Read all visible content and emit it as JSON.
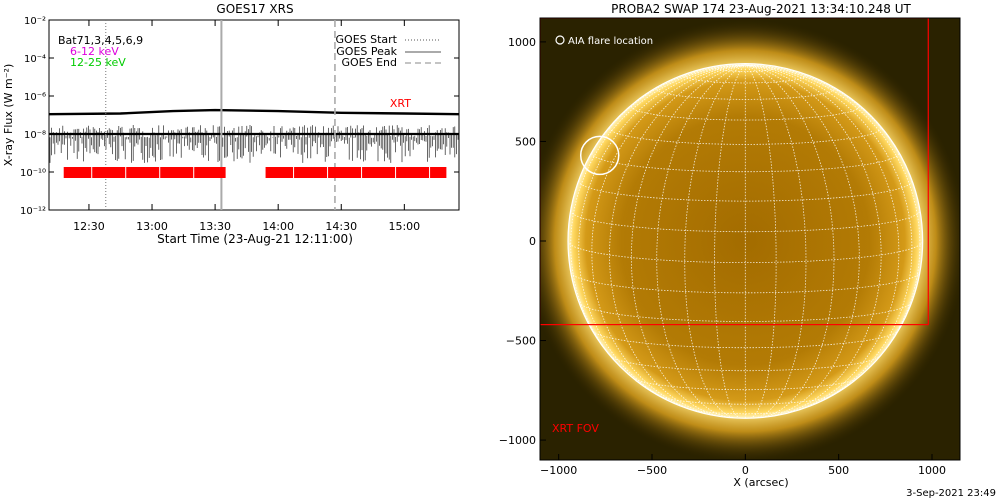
{
  "goes_panel": {
    "title": "GOES17 XRS",
    "ylabel": "X-ray Flux (W m⁻²)",
    "xlabel": "Start Time (23-Aug-21 12:11:00)",
    "ytick_labels": [
      "10⁻²",
      "10⁻⁴",
      "10⁻⁶",
      "10⁻⁸",
      "10⁻¹⁰",
      "10⁻¹²"
    ],
    "xtick_labels": [
      "12:30",
      "13:00",
      "13:30",
      "14:00",
      "14:30",
      "15:00"
    ],
    "text_lines": [
      {
        "text": "Bat71,3,4,5,6,9",
        "color": "#000000"
      },
      {
        "text": "6-12 keV",
        "color": "#dd00dd"
      },
      {
        "text": "12-25 keV",
        "color": "#00cc00"
      }
    ],
    "legend": [
      "GOES Start",
      "GOES Peak",
      "GOES End"
    ],
    "xrt_label": "XRT"
  },
  "swap_panel": {
    "title": "PROBA2 SWAP 174 23-Aug-2021 13:34:10.248 UT",
    "xlabel": "X (arcsec)",
    "xtick_labels": [
      "−1000",
      "−500",
      "0",
      "500",
      "1000"
    ],
    "ytick_labels": [
      "1000",
      "500",
      "0",
      "−500",
      "−1000"
    ],
    "flare_legend": "AIA flare location",
    "xrt_fov_label": "XRT FOV"
  },
  "footer_date": "3-Sep-2021 23:49",
  "colors": {
    "xrt": "#ff0000",
    "sun_glow": "#ffd24a",
    "sun_disk": "#b77a00",
    "background": "#2a2200"
  },
  "chart_data": [
    {
      "type": "line",
      "title": "GOES17 XRS",
      "xlabel": "Start Time (23-Aug-21 12:11:00)",
      "ylabel": "X-ray Flux (W m⁻²)",
      "xlim": [
        "12:11",
        "15:26"
      ],
      "ylim": [
        1e-12,
        0.01
      ],
      "yscale": "log",
      "series": [
        {
          "name": "",
          "x": [
            "12:11",
            "12:45",
            "13:10",
            "13:30",
            "14:00",
            "14:30",
            "15:00",
            "15:26"
          ],
          "values": [
            1.1e-07,
            1.2e-07,
            1.6e-07,
            1.8e-07,
            1.6e-07,
            1.3e-07,
            1.2e-07,
            1.1e-07
          ]
        },
        {
          "name": "",
          "x": [
            "12:11",
            "13:30",
            "14:30",
            "15:26"
          ],
          "values": [
            1e-08,
            1e-08,
            1e-08,
            1e-08
          ],
          "noise_range": [
            3e-10,
            3e-08
          ]
        }
      ],
      "vertical_lines": [
        {
          "label": "GOES Start",
          "x": "12:38",
          "style": "dotted"
        },
        {
          "label": "GOES Peak",
          "x": "13:33",
          "style": "solid"
        },
        {
          "label": "GOES End",
          "x": "14:27",
          "style": "dashed"
        }
      ],
      "xrt_segments": [
        [
          "12:18",
          "13:35"
        ],
        [
          "13:54",
          "15:20"
        ]
      ],
      "xrt_level": 1e-10
    },
    {
      "type": "image",
      "title": "PROBA2 SWAP 174 23-Aug-2021 13:34:10.248 UT",
      "xlabel": "X (arcsec)",
      "xlim": [
        -1100,
        1150
      ],
      "ylim": [
        -1100,
        1120
      ],
      "solar_radius_arcsec": 950,
      "flare_location": {
        "x": -780,
        "y": 430
      },
      "xrt_fov": {
        "x": [
          -1100,
          980
        ],
        "y": [
          -420,
          1120
        ]
      }
    }
  ]
}
